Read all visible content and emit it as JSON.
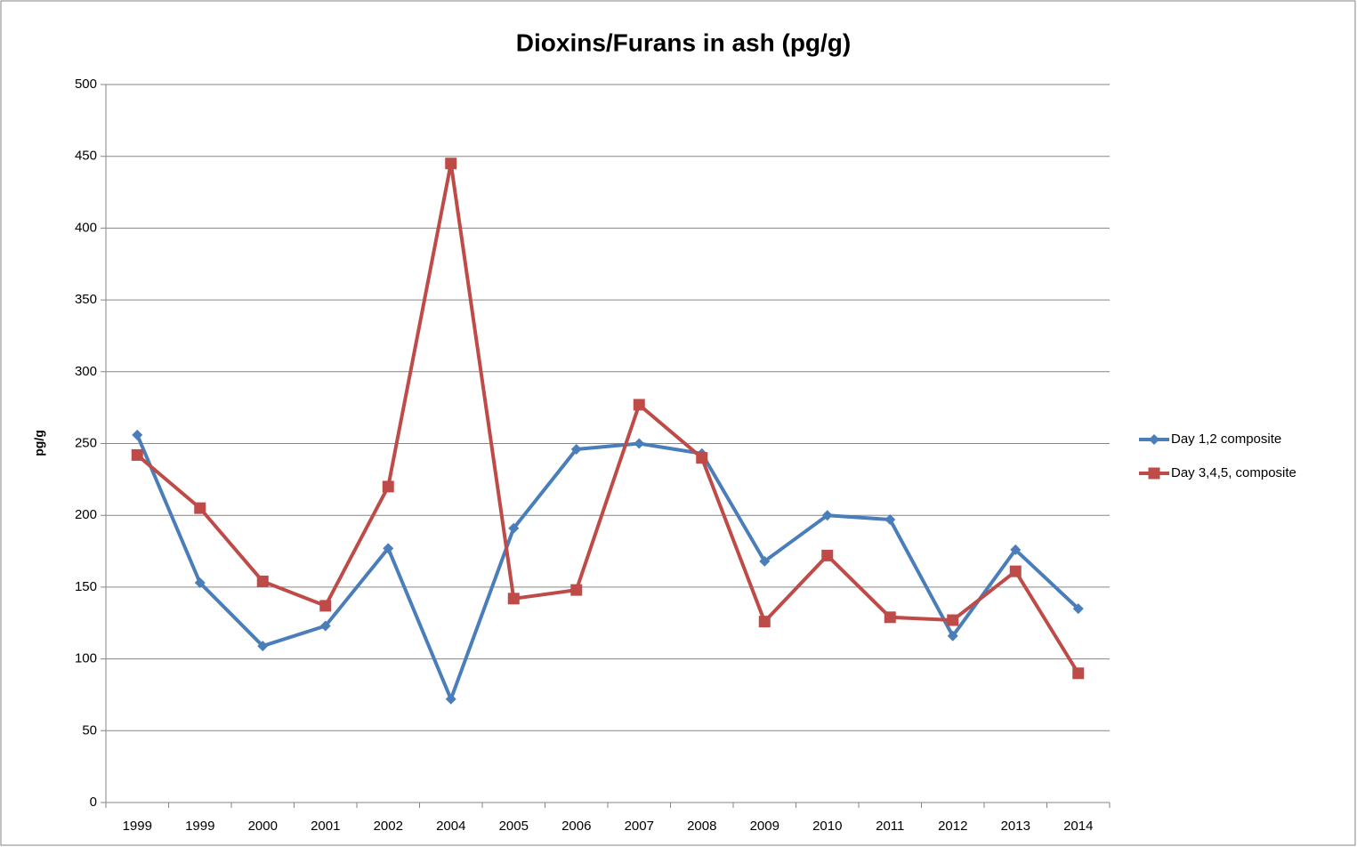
{
  "chart_data": {
    "type": "line",
    "title": "Dioxins/Furans in ash (pg/g)",
    "y_label": "pg/g",
    "categories": [
      "1999",
      "1999",
      "2000",
      "2001",
      "2002",
      "2004",
      "2005",
      "2006",
      "2007",
      "2008",
      "2009",
      "2010",
      "2011",
      "2012",
      "2013",
      "2014"
    ],
    "series": [
      {
        "name": "Day 1,2 composite",
        "color": "#4a7ebb",
        "marker": "diamond",
        "values": [
          256,
          153,
          109,
          123,
          177,
          72,
          191,
          246,
          250,
          243,
          168,
          200,
          197,
          116,
          176,
          135
        ]
      },
      {
        "name": "Day 3,4,5, composite",
        "color": "#be4b48",
        "marker": "square",
        "values": [
          242,
          205,
          154,
          137,
          220,
          445,
          142,
          148,
          277,
          240,
          126,
          172,
          129,
          127,
          161,
          90
        ]
      }
    ],
    "ylim": [
      0,
      500
    ],
    "yticks": [
      0,
      50,
      100,
      150,
      200,
      250,
      300,
      350,
      400,
      450,
      500
    ],
    "grid": true,
    "legend": "right"
  }
}
